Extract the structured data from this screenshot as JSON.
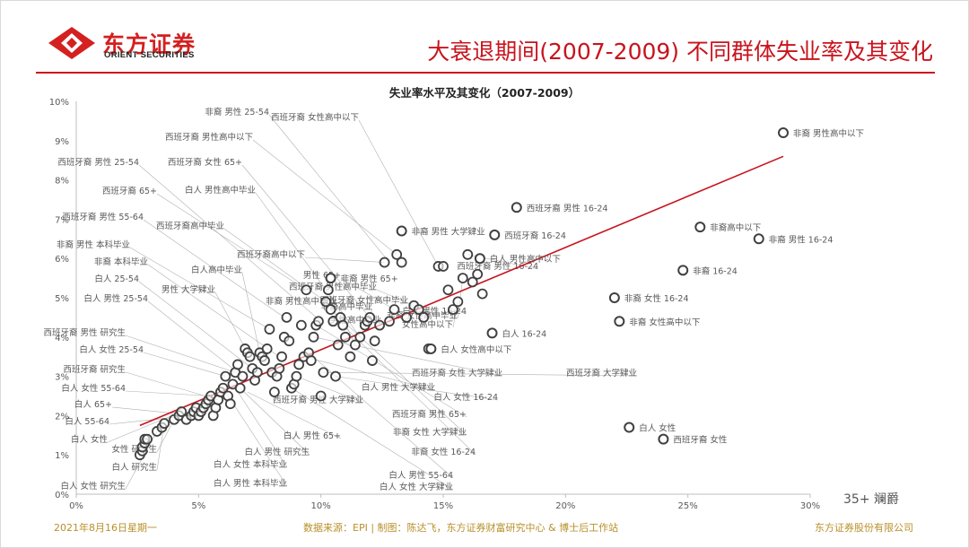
{
  "header": {
    "logo_cn": "东方证券",
    "logo_en": "ORIENT SECURITIES",
    "title": "大衰退期间(2007-2009) 不同群体失业率及其变化"
  },
  "footer": {
    "date": "2021年8月16日星期一",
    "source": "数据来源：EPI | 制图：陈达飞，东方证券财富研究中心 & 博士后工作站",
    "company": "东方证券股份有限公司"
  },
  "watermark": "35+ 斓爵",
  "colors": {
    "accent": "#c8141e",
    "marker": "#404040",
    "label": "#555555"
  },
  "chart_data": {
    "type": "scatter",
    "title": "失业率水平及其变化（2007-2009）",
    "xlabel": "",
    "ylabel": "",
    "xlim": [
      0,
      0.3
    ],
    "ylim": [
      0,
      0.1
    ],
    "x_ticks": [
      "0%",
      "5%",
      "10%",
      "15%",
      "20%",
      "25%",
      "30%"
    ],
    "y_ticks": [
      "0%",
      "1%",
      "2%",
      "3%",
      "4%",
      "5%",
      "6%",
      "7%",
      "8%",
      "9%",
      "10%"
    ],
    "grid": false,
    "trendline": {
      "x": [
        0.026,
        0.289
      ],
      "y": [
        0.0175,
        0.086
      ]
    },
    "labeled_points": [
      {
        "x": 0.289,
        "y": 0.092,
        "label": "非裔 男性高中以下"
      },
      {
        "x": 0.255,
        "y": 0.068,
        "label": "非裔高中以下"
      },
      {
        "x": 0.279,
        "y": 0.065,
        "label": "非裔 男性 16-24"
      },
      {
        "x": 0.248,
        "y": 0.057,
        "label": "非裔 16-24"
      },
      {
        "x": 0.18,
        "y": 0.073,
        "label": "西班牙裔 男性 16-24"
      },
      {
        "x": 0.171,
        "y": 0.066,
        "label": "西班牙裔 16-24"
      },
      {
        "x": 0.22,
        "y": 0.05,
        "label": "非裔 女性 16-24"
      },
      {
        "x": 0.222,
        "y": 0.044,
        "label": "非裔 女性高中以下"
      },
      {
        "x": 0.165,
        "y": 0.06,
        "label": "白人 男性高中以下"
      },
      {
        "x": 0.133,
        "y": 0.067,
        "label": "非裔 男性 大学肄业"
      },
      {
        "x": 0.104,
        "y": 0.055,
        "label": "非裔 男性 65+"
      },
      {
        "x": 0.17,
        "y": 0.041,
        "label": "白人 16-24"
      },
      {
        "x": 0.145,
        "y": 0.037,
        "label": "白人 女性高中以下"
      },
      {
        "x": 0.24,
        "y": 0.014,
        "label": "西班牙裔 女性"
      },
      {
        "x": 0.226,
        "y": 0.017,
        "label": "白人 女性"
      }
    ],
    "callout_labels": [
      "非裔 男性 25-54",
      "西班牙裔 女性高中以下",
      "西班牙裔 男性高中以下",
      "西班牙裔 男性 25-54",
      "西班牙裔 女性 65+",
      "西班牙裔 65+",
      "白人 男性高中毕业",
      "西班牙裔 男性 55-64",
      "西班牙裔高中毕业",
      "非裔 男性 本科毕业",
      "非裔 本科毕业",
      "白人高中毕业",
      "白人 25-54",
      "男性 大学肄业",
      "白人 男性 25-54",
      "西班牙裔 男性 研究生",
      "白人 女性 25-54",
      "西班牙裔 研究生",
      "白人 女性 55-64",
      "白人 65+",
      "白人 55-64",
      "白人 女性",
      "女性 研究生",
      "白人 研究生",
      "白人 女性 研究生",
      "白人 男性 本科毕业",
      "白人 女性 本科毕业",
      "白人 男性 研究生",
      "白人 男性 65+",
      "非裔 女性 大学肄业",
      "非裔 女性 16-24",
      "白人 男性 55-64",
      "白人 女性 大学肄业",
      "西班牙裔 男性 65+",
      "白人 女性 16-24",
      "西班牙裔 男性 大学肄业",
      "白人 男性 大学肄业",
      "西班牙裔 女性 大学肄业",
      "西班牙裔 大学肄业",
      "西班牙裔高中以下",
      "男性 65+",
      "西班牙裔 男性高中毕业",
      "西班牙裔 女性高中毕业",
      "白人 男性 16-24",
      "女性高中以下",
      "非裔 男性高中毕业",
      "非裔高中毕业",
      "男性高中毕业",
      "非裔 女性高中毕业",
      "西班牙裔 男性 16-24"
    ],
    "series": [
      {
        "points": [
          [
            0.026,
            0.01
          ],
          [
            0.027,
            0.011
          ],
          [
            0.027,
            0.012
          ],
          [
            0.028,
            0.013
          ],
          [
            0.028,
            0.014
          ],
          [
            0.029,
            0.014
          ],
          [
            0.033,
            0.016
          ],
          [
            0.035,
            0.017
          ],
          [
            0.036,
            0.018
          ],
          [
            0.04,
            0.019
          ],
          [
            0.042,
            0.02
          ],
          [
            0.043,
            0.021
          ],
          [
            0.045,
            0.019
          ],
          [
            0.047,
            0.02
          ],
          [
            0.048,
            0.021
          ],
          [
            0.049,
            0.022
          ],
          [
            0.05,
            0.02
          ],
          [
            0.051,
            0.021
          ],
          [
            0.052,
            0.022
          ],
          [
            0.053,
            0.023
          ],
          [
            0.054,
            0.024
          ],
          [
            0.055,
            0.025
          ],
          [
            0.056,
            0.02
          ],
          [
            0.057,
            0.022
          ],
          [
            0.058,
            0.024
          ],
          [
            0.059,
            0.026
          ],
          [
            0.06,
            0.027
          ],
          [
            0.061,
            0.03
          ],
          [
            0.062,
            0.025
          ],
          [
            0.063,
            0.023
          ],
          [
            0.064,
            0.028
          ],
          [
            0.065,
            0.031
          ],
          [
            0.066,
            0.033
          ],
          [
            0.067,
            0.027
          ],
          [
            0.068,
            0.03
          ],
          [
            0.069,
            0.037
          ],
          [
            0.07,
            0.036
          ],
          [
            0.071,
            0.035
          ],
          [
            0.072,
            0.032
          ],
          [
            0.073,
            0.029
          ],
          [
            0.074,
            0.031
          ],
          [
            0.075,
            0.036
          ],
          [
            0.076,
            0.035
          ],
          [
            0.077,
            0.034
          ],
          [
            0.078,
            0.037
          ],
          [
            0.079,
            0.042
          ],
          [
            0.08,
            0.031
          ],
          [
            0.081,
            0.026
          ],
          [
            0.082,
            0.03
          ],
          [
            0.083,
            0.032
          ],
          [
            0.084,
            0.035
          ],
          [
            0.085,
            0.04
          ],
          [
            0.086,
            0.045
          ],
          [
            0.087,
            0.039
          ],
          [
            0.088,
            0.027
          ],
          [
            0.089,
            0.028
          ],
          [
            0.09,
            0.03
          ],
          [
            0.091,
            0.033
          ],
          [
            0.092,
            0.043
          ],
          [
            0.093,
            0.035
          ],
          [
            0.094,
            0.052
          ],
          [
            0.095,
            0.036
          ],
          [
            0.096,
            0.034
          ],
          [
            0.097,
            0.04
          ],
          [
            0.098,
            0.043
          ],
          [
            0.099,
            0.044
          ],
          [
            0.1,
            0.025
          ],
          [
            0.101,
            0.031
          ],
          [
            0.102,
            0.049
          ],
          [
            0.103,
            0.052
          ],
          [
            0.104,
            0.047
          ],
          [
            0.105,
            0.044
          ],
          [
            0.106,
            0.03
          ],
          [
            0.107,
            0.038
          ],
          [
            0.108,
            0.045
          ],
          [
            0.109,
            0.043
          ],
          [
            0.11,
            0.04
          ],
          [
            0.112,
            0.035
          ],
          [
            0.114,
            0.038
          ],
          [
            0.116,
            0.04
          ],
          [
            0.118,
            0.043
          ],
          [
            0.119,
            0.044
          ],
          [
            0.12,
            0.045
          ],
          [
            0.121,
            0.034
          ],
          [
            0.122,
            0.039
          ],
          [
            0.124,
            0.043
          ],
          [
            0.126,
            0.059
          ],
          [
            0.128,
            0.044
          ],
          [
            0.13,
            0.047
          ],
          [
            0.131,
            0.061
          ],
          [
            0.133,
            0.059
          ],
          [
            0.135,
            0.045
          ],
          [
            0.138,
            0.048
          ],
          [
            0.14,
            0.047
          ],
          [
            0.142,
            0.045
          ],
          [
            0.144,
            0.037
          ],
          [
            0.148,
            0.058
          ],
          [
            0.15,
            0.058
          ],
          [
            0.152,
            0.052
          ],
          [
            0.154,
            0.047
          ],
          [
            0.156,
            0.049
          ],
          [
            0.158,
            0.055
          ],
          [
            0.16,
            0.061
          ],
          [
            0.162,
            0.054
          ],
          [
            0.164,
            0.056
          ],
          [
            0.166,
            0.051
          ]
        ]
      }
    ]
  }
}
